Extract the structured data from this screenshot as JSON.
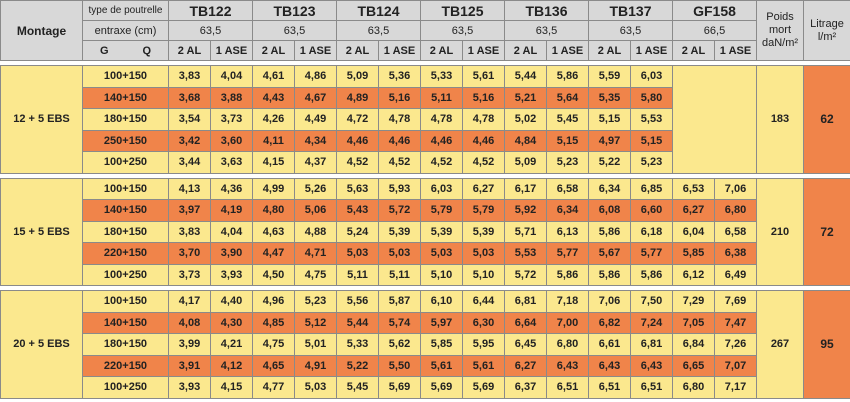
{
  "header": {
    "montage": "Montage",
    "type_label": "type de poutrelle",
    "entraxe_label": "entraxe (cm)",
    "g": "G",
    "q": "Q",
    "products": [
      {
        "name": "TB122",
        "entraxe": "63,5"
      },
      {
        "name": "TB123",
        "entraxe": "63,5"
      },
      {
        "name": "TB124",
        "entraxe": "63,5"
      },
      {
        "name": "TB125",
        "entraxe": "63,5"
      },
      {
        "name": "TB136",
        "entraxe": "63,5"
      },
      {
        "name": "TB137",
        "entraxe": "63,5"
      },
      {
        "name": "GF158",
        "entraxe": "66,5"
      }
    ],
    "sub_columns": [
      "2 AL",
      "1 ASE"
    ],
    "poids": [
      "Poids",
      "mort",
      "daN/m²"
    ],
    "litrage": [
      "Litrage",
      "l/m²"
    ]
  },
  "groups": [
    {
      "montage": "12 + 5 EBS",
      "poids": 183,
      "litrage": 62,
      "rows": [
        {
          "gq": "100+150",
          "values": [
            "3,83",
            "4,04",
            "4,61",
            "4,86",
            "5,09",
            "5,36",
            "5,33",
            "5,61",
            "5,44",
            "5,86",
            "5,59",
            "6,03"
          ]
        },
        {
          "gq": "140+150",
          "values": [
            "3,68",
            "3,88",
            "4,43",
            "4,67",
            "4,89",
            "5,16",
            "5,11",
            "5,16",
            "5,21",
            "5,64",
            "5,35",
            "5,80"
          ]
        },
        {
          "gq": "180+150",
          "values": [
            "3,54",
            "3,73",
            "4,26",
            "4,49",
            "4,72",
            "4,78",
            "4,78",
            "4,78",
            "5,02",
            "5,45",
            "5,15",
            "5,53"
          ]
        },
        {
          "gq": "250+150",
          "values": [
            "3,42",
            "3,60",
            "4,11",
            "4,34",
            "4,46",
            "4,46",
            "4,46",
            "4,46",
            "4,84",
            "5,15",
            "4,97",
            "5,15"
          ]
        },
        {
          "gq": "100+250",
          "values": [
            "3,44",
            "3,63",
            "4,15",
            "4,37",
            "4,52",
            "4,52",
            "4,52",
            "4,52",
            "5,09",
            "5,23",
            "5,22",
            "5,23"
          ]
        }
      ]
    },
    {
      "montage": "15 + 5 EBS",
      "poids": 210,
      "litrage": 72,
      "rows": [
        {
          "gq": "100+150",
          "values": [
            "4,13",
            "4,36",
            "4,99",
            "5,26",
            "5,63",
            "5,93",
            "6,03",
            "6,27",
            "6,17",
            "6,58",
            "6,34",
            "6,85",
            "6,53",
            "7,06"
          ]
        },
        {
          "gq": "140+150",
          "values": [
            "3,97",
            "4,19",
            "4,80",
            "5,06",
            "5,43",
            "5,72",
            "5,79",
            "5,79",
            "5,92",
            "6,34",
            "6,08",
            "6,60",
            "6,27",
            "6,80"
          ]
        },
        {
          "gq": "180+150",
          "values": [
            "3,83",
            "4,04",
            "4,63",
            "4,88",
            "5,24",
            "5,39",
            "5,39",
            "5,39",
            "5,71",
            "6,13",
            "5,86",
            "6,18",
            "6,04",
            "6,58"
          ]
        },
        {
          "gq": "220+150",
          "values": [
            "3,70",
            "3,90",
            "4,47",
            "4,71",
            "5,03",
            "5,03",
            "5,03",
            "5,03",
            "5,53",
            "5,77",
            "5,67",
            "5,77",
            "5,85",
            "6,38"
          ]
        },
        {
          "gq": "100+250",
          "values": [
            "3,73",
            "3,93",
            "4,50",
            "4,75",
            "5,11",
            "5,11",
            "5,10",
            "5,10",
            "5,72",
            "5,86",
            "5,86",
            "5,86",
            "6,12",
            "6,49"
          ]
        }
      ]
    },
    {
      "montage": "20 + 5 EBS",
      "poids": 267,
      "litrage": 95,
      "rows": [
        {
          "gq": "100+150",
          "values": [
            "4,17",
            "4,40",
            "4,96",
            "5,23",
            "5,56",
            "5,87",
            "6,10",
            "6,44",
            "6,81",
            "7,18",
            "7,06",
            "7,50",
            "7,29",
            "7,69"
          ]
        },
        {
          "gq": "140+150",
          "values": [
            "4,08",
            "4,30",
            "4,85",
            "5,12",
            "5,44",
            "5,74",
            "5,97",
            "6,30",
            "6,64",
            "7,00",
            "6,82",
            "7,24",
            "7,05",
            "7,47"
          ]
        },
        {
          "gq": "180+150",
          "values": [
            "3,99",
            "4,21",
            "4,75",
            "5,01",
            "5,33",
            "5,62",
            "5,85",
            "5,95",
            "6,45",
            "6,80",
            "6,61",
            "6,81",
            "6,84",
            "7,26"
          ]
        },
        {
          "gq": "220+150",
          "values": [
            "3,91",
            "4,12",
            "4,65",
            "4,91",
            "5,22",
            "5,50",
            "5,61",
            "5,61",
            "6,27",
            "6,43",
            "6,43",
            "6,43",
            "6,65",
            "7,07"
          ]
        },
        {
          "gq": "100+250",
          "values": [
            "3,93",
            "4,15",
            "4,77",
            "5,03",
            "5,45",
            "5,69",
            "5,69",
            "5,69",
            "6,37",
            "6,51",
            "6,51",
            "6,51",
            "6,80",
            "7,17"
          ]
        }
      ]
    }
  ]
}
